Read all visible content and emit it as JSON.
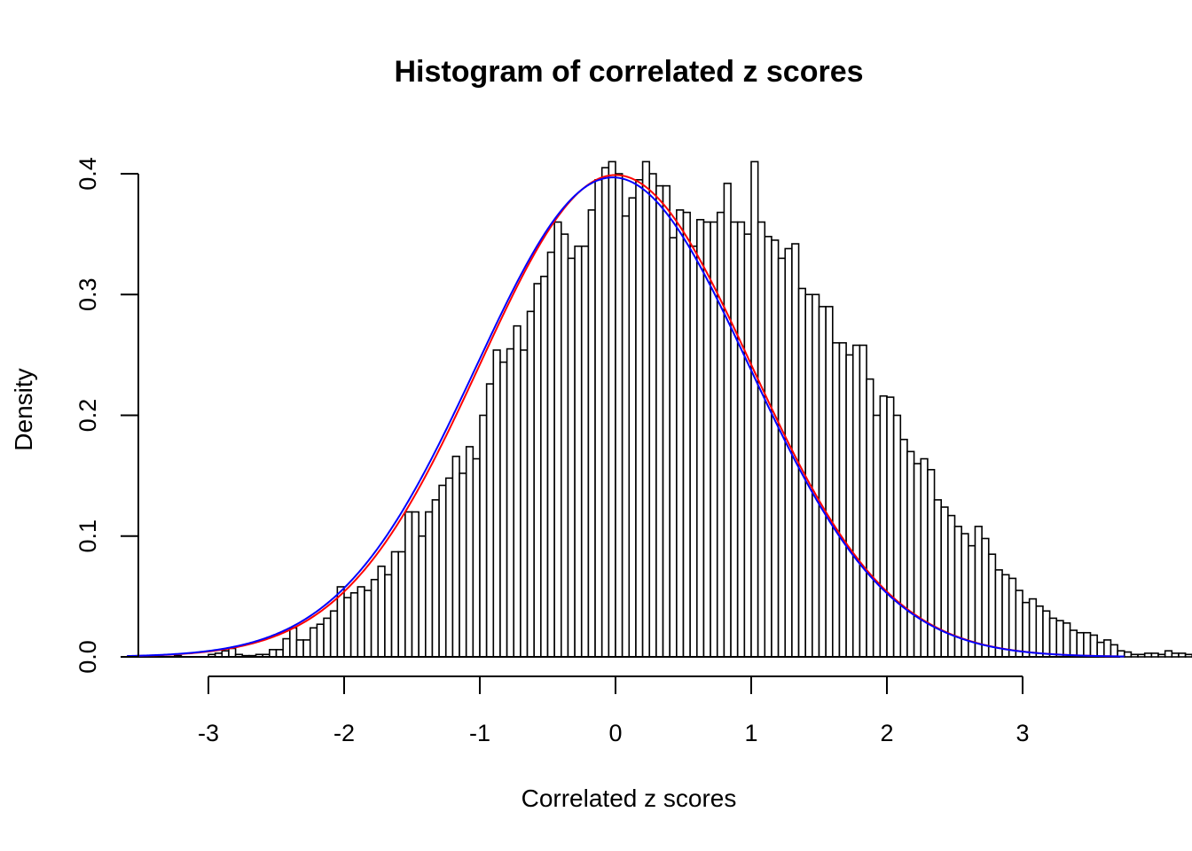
{
  "chart_data": {
    "type": "bar",
    "title": "Histogram of correlated z scores",
    "xlabel": "Correlated z scores",
    "ylabel": "Density",
    "xlim": [
      -3.6,
      3.75
    ],
    "ylim": [
      0,
      0.42
    ],
    "xticks": [
      -3,
      -2,
      -1,
      0,
      1,
      2,
      3
    ],
    "xtick_labels": [
      "-3",
      "-2",
      "-1",
      "0",
      "1",
      "2",
      "3"
    ],
    "yticks": [
      0,
      0.1,
      0.2,
      0.3,
      0.4
    ],
    "ytick_labels": [
      "0.0",
      "0.1",
      "0.2",
      "0.3",
      "0.4"
    ],
    "bin_start": -3.25,
    "bin_width": 0.05,
    "densities": [
      0.001,
      0,
      0,
      0,
      0,
      0.002,
      0.003,
      0.005,
      0.007,
      0.002,
      0.001,
      0.001,
      0.002,
      0.002,
      0.006,
      0.006,
      0.015,
      0.024,
      0.014,
      0.014,
      0.024,
      0.027,
      0.032,
      0.038,
      0.058,
      0.049,
      0.053,
      0.058,
      0.055,
      0.064,
      0.075,
      0.068,
      0.087,
      0.087,
      0.12,
      0.12,
      0.1,
      0.12,
      0.13,
      0.142,
      0.148,
      0.166,
      0.152,
      0.174,
      0.164,
      0.2,
      0.226,
      0.254,
      0.244,
      0.255,
      0.274,
      0.254,
      0.286,
      0.309,
      0.315,
      0.335,
      0.36,
      0.35,
      0.33,
      0.34,
      0.34,
      0.37,
      0.395,
      0.405,
      0.41,
      0.4,
      0.365,
      0.38,
      0.395,
      0.41,
      0.4,
      0.39,
      0.39,
      0.347,
      0.37,
      0.368,
      0.34,
      0.362,
      0.36,
      0.36,
      0.368,
      0.392,
      0.36,
      0.36,
      0.35,
      0.41,
      0.36,
      0.348,
      0.345,
      0.33,
      0.338,
      0.342,
      0.305,
      0.3,
      0.3,
      0.29,
      0.29,
      0.26,
      0.26,
      0.25,
      0.258,
      0.258,
      0.23,
      0.2,
      0.216,
      0.215,
      0.2,
      0.18,
      0.17,
      0.16,
      0.164,
      0.155,
      0.13,
      0.124,
      0.117,
      0.108,
      0.102,
      0.092,
      0.108,
      0.098,
      0.085,
      0.072,
      0.068,
      0.065,
      0.055,
      0.045,
      0.048,
      0.042,
      0.038,
      0.032,
      0.03,
      0.028,
      0.022,
      0.02,
      0.02,
      0.018,
      0.012,
      0.014,
      0.01,
      0.005,
      0.004,
      0.002,
      0.002,
      0.003,
      0.003,
      0.002,
      0.005,
      0.003,
      0.003,
      0.002,
      0.001,
      0.001,
      0.001,
      0.001,
      0.001,
      0.002
    ],
    "curves": [
      {
        "color": "#ff0000",
        "mean": 0.0,
        "sd": 1.0
      },
      {
        "color": "#0000ff",
        "mean": -0.02,
        "sd": 1.005
      }
    ],
    "bar_fill": "#ffffff",
    "bar_stroke": "#000000"
  }
}
